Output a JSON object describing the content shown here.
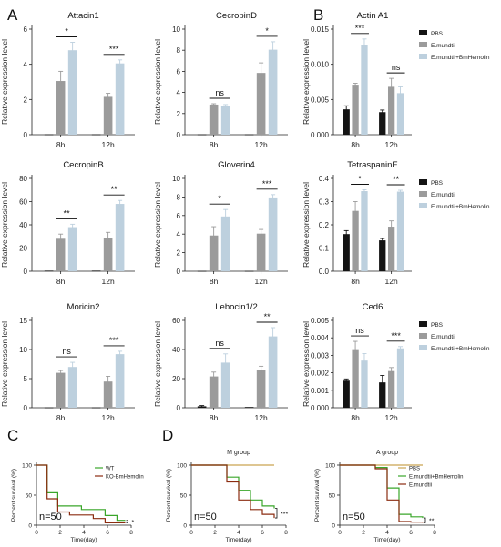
{
  "panel_labels": [
    "A",
    "B",
    "C",
    "D"
  ],
  "colors": {
    "pbs": "#141414",
    "em": "#9b9b9b",
    "emb": "#bdd0de",
    "wt": "#3aa62a",
    "ko": "#8b2c10",
    "pbs_line": "#c9a552",
    "emb_line": "#3aa62a",
    "em_line": "#8b2c10"
  },
  "chart_data": [
    {
      "id": "attacin1",
      "type": "bar",
      "title": "Attacin1",
      "ylabel": "Relative expression level",
      "categories": [
        "8h",
        "12h"
      ],
      "ylim": [
        0,
        6
      ],
      "yticks": [
        0,
        2,
        4,
        6
      ],
      "series": [
        {
          "name": "PBS",
          "values": [
            0.02,
            0.02
          ],
          "errors": [
            0,
            0
          ]
        },
        {
          "name": "E.mundtii",
          "values": [
            3.05,
            2.15
          ],
          "errors": [
            0.55,
            0.2
          ]
        },
        {
          "name": "E.mundtii+BmHemolin",
          "values": [
            4.8,
            4.05
          ],
          "errors": [
            0.45,
            0.2
          ]
        }
      ],
      "significance": [
        {
          "group": 0,
          "label": "*"
        },
        {
          "group": 1,
          "label": "***"
        }
      ]
    },
    {
      "id": "cecropind",
      "type": "bar",
      "title": "CecropinD",
      "ylabel": "Relative expression level",
      "categories": [
        "8h",
        "12h"
      ],
      "ylim": [
        0,
        10
      ],
      "yticks": [
        0,
        2,
        4,
        6,
        8,
        10
      ],
      "series": [
        {
          "name": "PBS",
          "values": [
            0.03,
            0.03
          ],
          "errors": [
            0,
            0
          ]
        },
        {
          "name": "E.mundtii",
          "values": [
            2.85,
            5.85
          ],
          "errors": [
            0.08,
            0.95
          ]
        },
        {
          "name": "E.mundtii+BmHemolin",
          "values": [
            2.7,
            8.05
          ],
          "errors": [
            0.15,
            0.75
          ]
        }
      ],
      "significance": [
        {
          "group": 0,
          "label": "ns"
        },
        {
          "group": 1,
          "label": "*"
        }
      ]
    },
    {
      "id": "actina1",
      "type": "bar",
      "title": "Actin A1",
      "ylabel": "Relative expression level",
      "categories": [
        "8h",
        "12h"
      ],
      "ylim": [
        0,
        0.015
      ],
      "yticks": [
        0,
        0.005,
        0.01,
        0.015
      ],
      "yticklabels": [
        "0.000",
        "0.005",
        "0.010",
        "0.015"
      ],
      "series": [
        {
          "name": "PBS",
          "values": [
            0.0036,
            0.0032
          ],
          "errors": [
            0.0005,
            0.0003
          ]
        },
        {
          "name": "E.mundtii",
          "values": [
            0.0071,
            0.0068
          ],
          "errors": [
            0.0002,
            0.0012
          ]
        },
        {
          "name": "E.mundtii+BmHemolin",
          "values": [
            0.0128,
            0.0059
          ],
          "errors": [
            0.0008,
            0.0009
          ]
        }
      ],
      "significance": [
        {
          "group": 0,
          "label": "***"
        },
        {
          "group": 1,
          "label": "ns"
        }
      ],
      "legend": [
        "PBS",
        "E.mundtii",
        "E.mundtii+BmHemolin"
      ]
    },
    {
      "id": "cecropinb",
      "type": "bar",
      "title": "CecropinB",
      "ylabel": "Relative expression level",
      "categories": [
        "8h",
        "12h"
      ],
      "ylim": [
        0,
        80
      ],
      "yticks": [
        0,
        20,
        40,
        60,
        80
      ],
      "series": [
        {
          "name": "PBS",
          "values": [
            0.5,
            0.5
          ],
          "errors": [
            0,
            0
          ]
        },
        {
          "name": "E.mundtii",
          "values": [
            28,
            29
          ],
          "errors": [
            4,
            4.5
          ]
        },
        {
          "name": "E.mundtii+BmHemolin",
          "values": [
            38,
            58
          ],
          "errors": [
            2.5,
            3
          ]
        }
      ],
      "significance": [
        {
          "group": 0,
          "label": "**"
        },
        {
          "group": 1,
          "label": "**"
        }
      ]
    },
    {
      "id": "gloverin4",
      "type": "bar",
      "title": "Gloverin4",
      "ylabel": "Relative expression level",
      "categories": [
        "8h",
        "12h"
      ],
      "ylim": [
        0,
        10
      ],
      "yticks": [
        0,
        2,
        4,
        6,
        8,
        10
      ],
      "series": [
        {
          "name": "PBS",
          "values": [
            0.03,
            0.03
          ],
          "errors": [
            0,
            0
          ]
        },
        {
          "name": "E.mundtii",
          "values": [
            3.85,
            4.05
          ],
          "errors": [
            0.95,
            0.45
          ]
        },
        {
          "name": "E.mundtii+BmHemolin",
          "values": [
            5.9,
            7.95
          ],
          "errors": [
            0.75,
            0.3
          ]
        }
      ],
      "significance": [
        {
          "group": 0,
          "label": "*"
        },
        {
          "group": 1,
          "label": "***"
        }
      ]
    },
    {
      "id": "tetraspanine",
      "type": "bar",
      "title": "TetraspaninE",
      "ylabel": "Relative expression level",
      "categories": [
        "8h",
        "12h"
      ],
      "ylim": [
        0,
        0.4
      ],
      "yticks": [
        0,
        0.1,
        0.2,
        0.3,
        0.4
      ],
      "yticklabels": [
        "0.0",
        "0.1",
        "0.2",
        "0.3",
        "0.4"
      ],
      "series": [
        {
          "name": "PBS",
          "values": [
            0.16,
            0.133
          ],
          "errors": [
            0.015,
            0.008
          ]
        },
        {
          "name": "E.mundtii",
          "values": [
            0.26,
            0.192
          ],
          "errors": [
            0.04,
            0.025
          ]
        },
        {
          "name": "E.mundtii+BmHemolin",
          "values": [
            0.345,
            0.343
          ],
          "errors": [
            0.006,
            0.006
          ]
        }
      ],
      "significance": [
        {
          "group": 0,
          "label": "*"
        },
        {
          "group": 1,
          "label": "**"
        }
      ],
      "legend": [
        "PBS",
        "E.mundtii",
        "E.mundtii+BmHemolin"
      ]
    },
    {
      "id": "moricin2",
      "type": "bar",
      "title": "Moricin2",
      "ylabel": "Relative expression level",
      "categories": [
        "8h",
        "12h"
      ],
      "ylim": [
        0,
        15
      ],
      "yticks": [
        0,
        5,
        10,
        15
      ],
      "series": [
        {
          "name": "PBS",
          "values": [
            0.05,
            0.05
          ],
          "errors": [
            0,
            0
          ]
        },
        {
          "name": "E.mundtii",
          "values": [
            6,
            4.5
          ],
          "errors": [
            0.4,
            0.9
          ]
        },
        {
          "name": "E.mundtii+BmHemolin",
          "values": [
            7,
            9.2
          ],
          "errors": [
            0.8,
            0.5
          ]
        }
      ],
      "significance": [
        {
          "group": 0,
          "label": "ns"
        },
        {
          "group": 1,
          "label": "***"
        }
      ]
    },
    {
      "id": "lebocin12",
      "type": "bar",
      "title": "Lebocin1/2",
      "ylabel": "Relative expression level",
      "categories": [
        "8h",
        "12h"
      ],
      "ylim": [
        0,
        60
      ],
      "yticks": [
        0,
        20,
        40,
        60
      ],
      "series": [
        {
          "name": "PBS",
          "values": [
            1,
            0.5
          ],
          "errors": [
            0.5,
            0
          ]
        },
        {
          "name": "E.mundtii",
          "values": [
            21.5,
            26
          ],
          "errors": [
            3,
            2.5
          ]
        },
        {
          "name": "E.mundtii+BmHemolin",
          "values": [
            31,
            49
          ],
          "errors": [
            6,
            6
          ]
        }
      ],
      "significance": [
        {
          "group": 0,
          "label": "ns"
        },
        {
          "group": 1,
          "label": "**"
        }
      ]
    },
    {
      "id": "ced6",
      "type": "bar",
      "title": "Ced6",
      "ylabel": "Relative expression level",
      "categories": [
        "8h",
        "12h"
      ],
      "ylim": [
        0,
        0.005
      ],
      "yticks": [
        0,
        0.001,
        0.002,
        0.003,
        0.004,
        0.005
      ],
      "yticklabels": [
        "0.000",
        "0.001",
        "0.002",
        "0.003",
        "0.004",
        "0.005"
      ],
      "series": [
        {
          "name": "PBS",
          "values": [
            0.00155,
            0.00145
          ],
          "errors": [
            0.0001,
            0.0004
          ]
        },
        {
          "name": "E.mundtii",
          "values": [
            0.0033,
            0.0021
          ],
          "errors": [
            0.0005,
            0.0002
          ]
        },
        {
          "name": "E.mundtii+BmHemolin",
          "values": [
            0.0027,
            0.0034
          ],
          "errors": [
            0.0004,
            0.0001
          ]
        }
      ],
      "significance": [
        {
          "group": 0,
          "label": "ns"
        },
        {
          "group": 1,
          "label": "***"
        }
      ],
      "legend": [
        "PBS",
        "E.mundtii",
        "E.mundtii+BmHemolin"
      ]
    },
    {
      "id": "survival_c",
      "type": "line",
      "title": "",
      "xlabel": "Time(day)",
      "ylabel": "Percent survival (%)",
      "xlim": [
        0,
        8
      ],
      "ylim": [
        0,
        100
      ],
      "xticks": [
        0,
        2,
        4,
        6,
        8
      ],
      "yticks": [
        0,
        50,
        100
      ],
      "annotation": "n=50",
      "sig": "*",
      "legend": [
        "WT",
        "KO-BmHemolin"
      ],
      "series": [
        {
          "name": "WT",
          "step": [
            [
              0,
              100
            ],
            [
              0.9,
              100
            ],
            [
              0.9,
              54
            ],
            [
              1.8,
              54
            ],
            [
              1.8,
              32
            ],
            [
              3.8,
              32
            ],
            [
              3.8,
              26
            ],
            [
              5.8,
              26
            ],
            [
              5.8,
              16
            ],
            [
              6.8,
              16
            ],
            [
              6.8,
              8
            ],
            [
              7.5,
              8
            ]
          ]
        },
        {
          "name": "KO-BmHemolin",
          "step": [
            [
              0,
              100
            ],
            [
              0.9,
              100
            ],
            [
              0.9,
              44
            ],
            [
              1.8,
              44
            ],
            [
              1.8,
              22
            ],
            [
              2.8,
              22
            ],
            [
              2.8,
              17
            ],
            [
              4.8,
              17
            ],
            [
              4.8,
              11
            ],
            [
              5.8,
              11
            ],
            [
              5.8,
              4
            ],
            [
              7.5,
              4
            ]
          ]
        }
      ]
    },
    {
      "id": "survival_m",
      "type": "line",
      "title": "M group",
      "xlabel": "Time(day)",
      "ylabel": "Percent survival (%)",
      "xlim": [
        0,
        8
      ],
      "ylim": [
        0,
        100
      ],
      "xticks": [
        0,
        2,
        4,
        6,
        8
      ],
      "yticks": [
        0,
        50,
        100
      ],
      "annotation": "n=50",
      "sig": "***",
      "series": [
        {
          "name": "PBS",
          "step": [
            [
              0,
              100
            ],
            [
              7,
              100
            ]
          ]
        },
        {
          "name": "E.mundtii+BmHemolin",
          "step": [
            [
              0,
              100
            ],
            [
              3,
              100
            ],
            [
              3,
              80
            ],
            [
              4,
              80
            ],
            [
              4,
              58
            ],
            [
              5,
              58
            ],
            [
              5,
              42
            ],
            [
              6,
              42
            ],
            [
              6,
              32
            ],
            [
              7,
              32
            ],
            [
              7,
              28
            ]
          ]
        },
        {
          "name": "E.mundtii",
          "step": [
            [
              0,
              100
            ],
            [
              3,
              100
            ],
            [
              3,
              72
            ],
            [
              4,
              72
            ],
            [
              4,
              42
            ],
            [
              5,
              42
            ],
            [
              5,
              26
            ],
            [
              6,
              26
            ],
            [
              6,
              18
            ],
            [
              7,
              18
            ],
            [
              7,
              12
            ]
          ]
        }
      ]
    },
    {
      "id": "survival_a",
      "type": "line",
      "title": "A group",
      "xlabel": "Time(day)",
      "ylabel": "Percent survival (%)",
      "xlim": [
        0,
        8
      ],
      "ylim": [
        0,
        100
      ],
      "xticks": [
        0,
        2,
        4,
        6,
        8
      ],
      "yticks": [
        0,
        50,
        100
      ],
      "annotation": "n=50",
      "sig": "**",
      "legend": [
        "PBS",
        "E.mundtii+BmHemolin",
        "E.mundtii"
      ],
      "series": [
        {
          "name": "PBS",
          "step": [
            [
              0,
              100
            ],
            [
              7,
              100
            ]
          ]
        },
        {
          "name": "E.mundtii+BmHemolin",
          "step": [
            [
              0,
              100
            ],
            [
              3,
              100
            ],
            [
              3,
              96
            ],
            [
              4,
              96
            ],
            [
              4,
              62
            ],
            [
              5,
              62
            ],
            [
              5,
              18
            ],
            [
              6,
              18
            ],
            [
              6,
              14
            ],
            [
              7,
              14
            ],
            [
              7,
              12
            ]
          ]
        },
        {
          "name": "E.mundtii",
          "step": [
            [
              0,
              100
            ],
            [
              3,
              100
            ],
            [
              3,
              94
            ],
            [
              4,
              94
            ],
            [
              4,
              42
            ],
            [
              5,
              42
            ],
            [
              5,
              6
            ],
            [
              6,
              6
            ],
            [
              6,
              5
            ],
            [
              7,
              5
            ],
            [
              7,
              4
            ]
          ]
        }
      ]
    }
  ]
}
